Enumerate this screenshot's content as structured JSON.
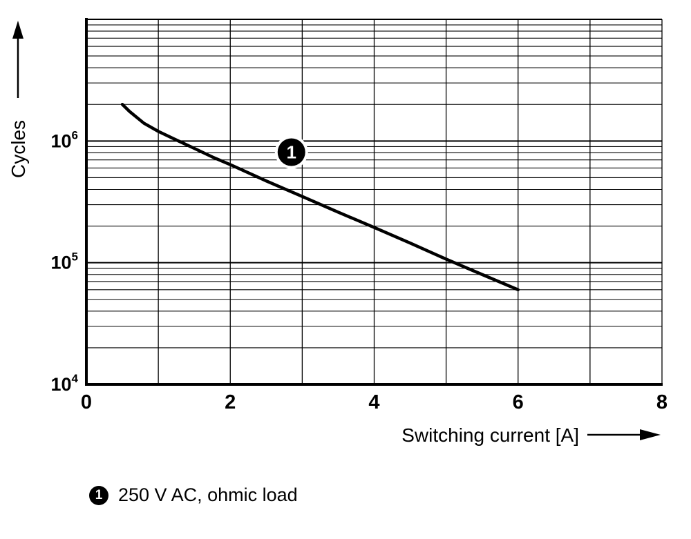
{
  "chart_data": {
    "type": "line",
    "title": "",
    "xlabel": "Switching current [A]",
    "ylabel": "Cycles",
    "xlim": [
      0,
      8
    ],
    "x_major_ticks": [
      0,
      2,
      4,
      6,
      8
    ],
    "x_grid_step": 1,
    "y_scale": "log",
    "ylim": [
      10000,
      10000000
    ],
    "y_ticks": [
      {
        "value": 10000,
        "base": "10",
        "exp": "4"
      },
      {
        "value": 100000,
        "base": "10",
        "exp": "5"
      },
      {
        "value": 1000000,
        "base": "10",
        "exp": "6"
      }
    ],
    "grid": true,
    "legend_position": "below",
    "series": [
      {
        "name": "1",
        "label": "250 V AC, ohmic load",
        "color": "#000000",
        "points": [
          [
            0.5,
            2000000
          ],
          [
            0.6,
            1750000
          ],
          [
            0.8,
            1400000
          ],
          [
            1.0,
            1200000
          ],
          [
            1.25,
            1020000
          ],
          [
            1.5,
            870000
          ],
          [
            1.75,
            740000
          ],
          [
            2.0,
            640000
          ],
          [
            2.5,
            470000
          ],
          [
            3.0,
            350000
          ],
          [
            3.5,
            260000
          ],
          [
            4.0,
            195000
          ],
          [
            4.5,
            145000
          ],
          [
            5.0,
            107000
          ],
          [
            5.5,
            80000
          ],
          [
            6.0,
            60000
          ]
        ]
      }
    ],
    "curve_marker": {
      "label": "1",
      "x": 2.85,
      "y": 810000
    }
  },
  "legend": {
    "marker_label": "1",
    "text": "250 V AC, ohmic load"
  },
  "colors": {
    "foreground": "#000000",
    "background": "#ffffff"
  }
}
